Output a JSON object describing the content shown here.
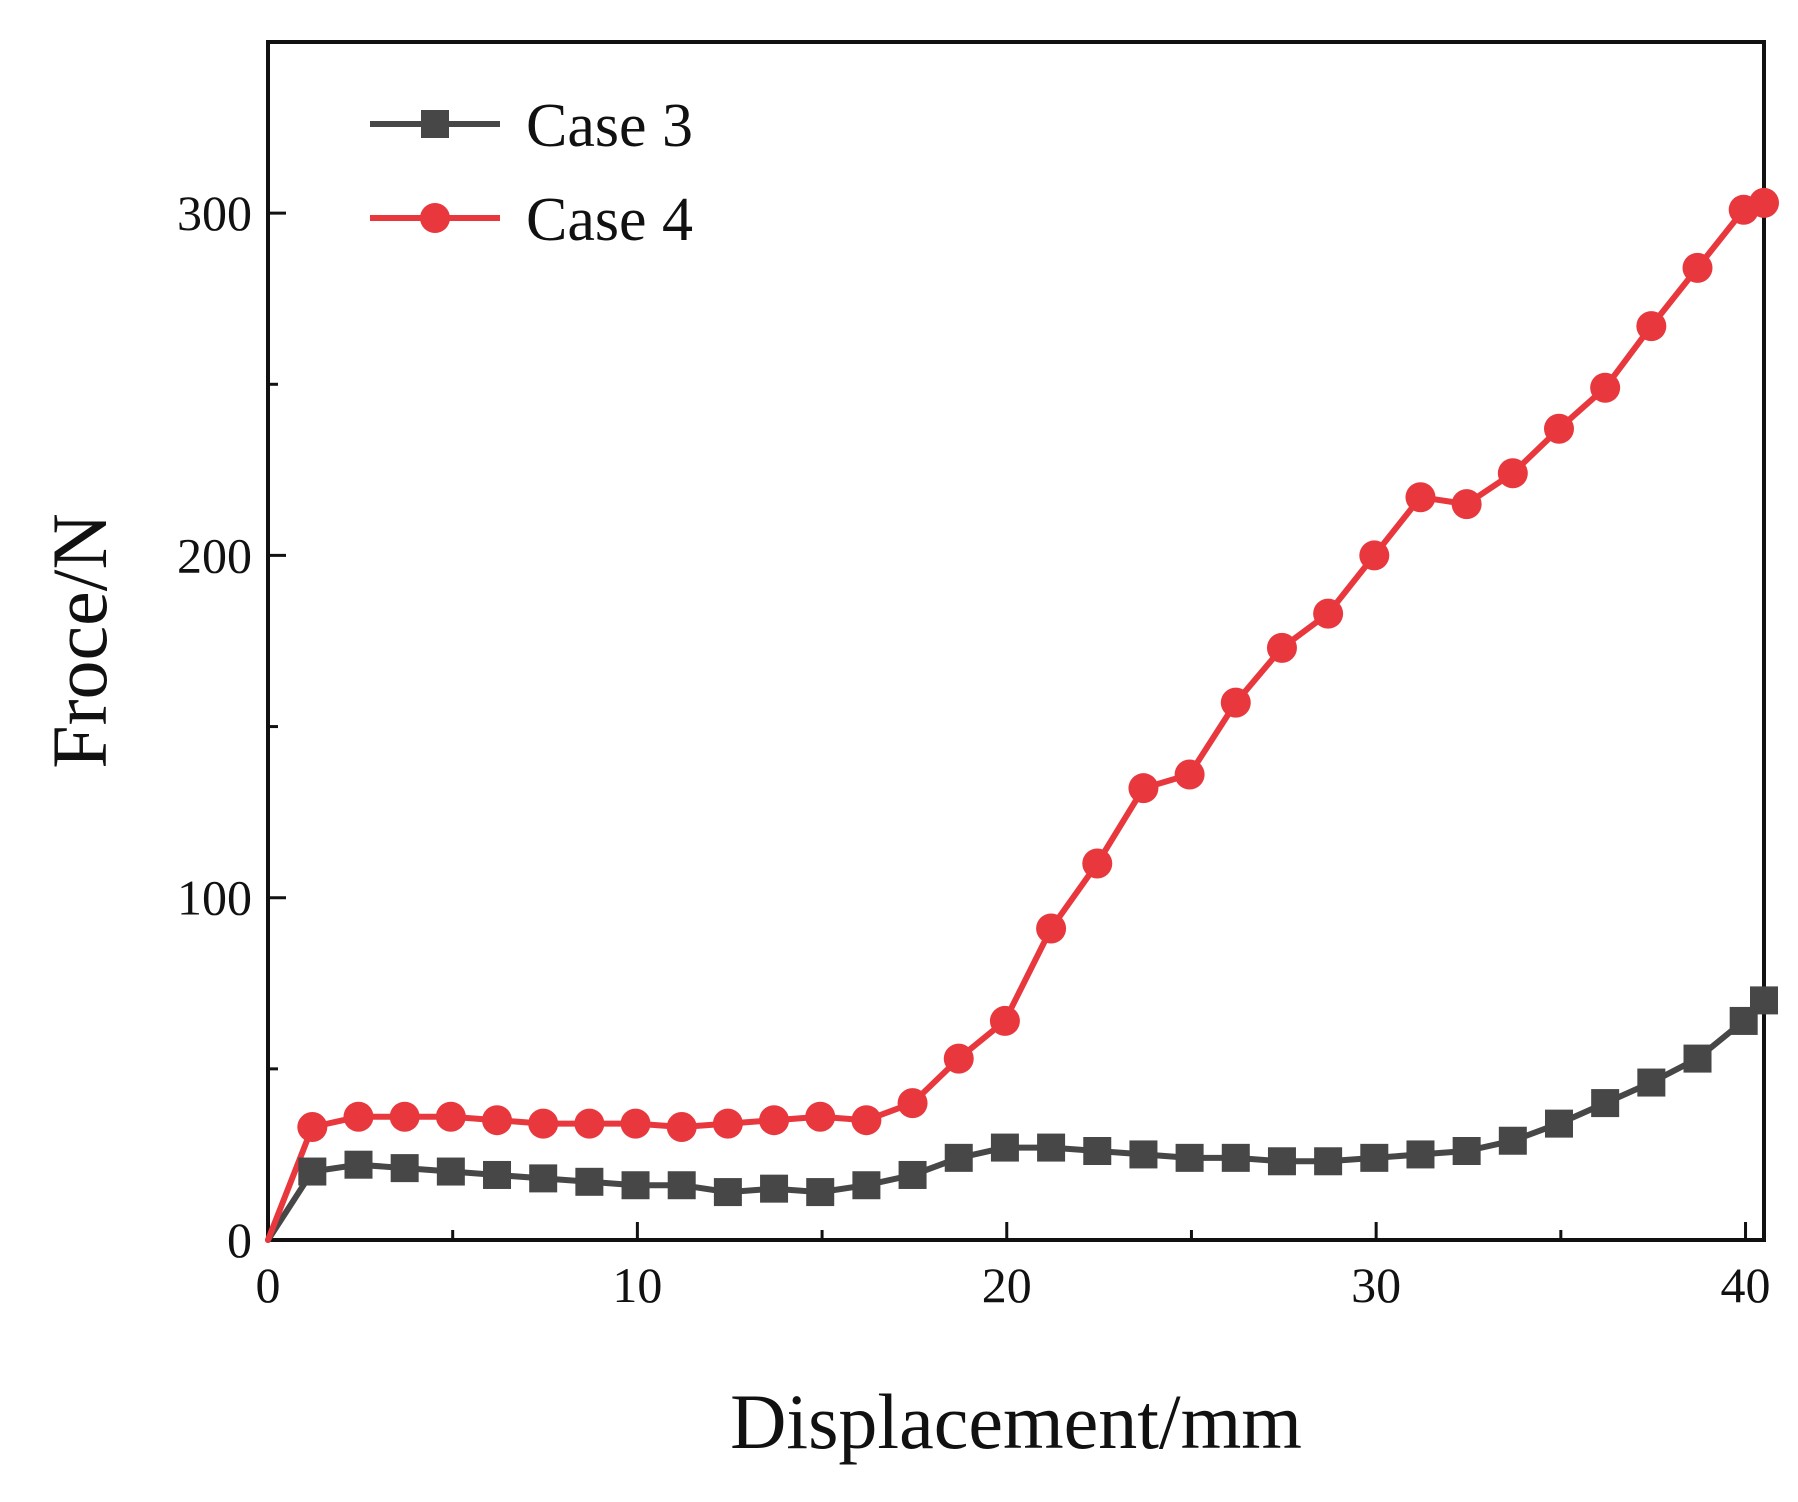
{
  "chart_data": {
    "type": "line",
    "title": "",
    "xlabel": "Displacement/mm",
    "ylabel": "Froce/N",
    "xlim": [
      0,
      40.5
    ],
    "ylim": [
      0,
      350
    ],
    "xticks": [
      0,
      10,
      20,
      30,
      40
    ],
    "xtick_labels": [
      "0",
      "10",
      "20",
      "30",
      "40"
    ],
    "yticks": [
      0,
      100,
      200,
      300
    ],
    "ytick_labels": [
      "0",
      "100",
      "200",
      "300"
    ],
    "grid": false,
    "legend_position": "top-left",
    "series": [
      {
        "name": "Case 3",
        "color": "#474747",
        "marker": "square",
        "x": [
          0,
          1.2,
          2.45,
          3.7,
          4.95,
          6.2,
          7.45,
          8.7,
          9.95,
          11.2,
          12.45,
          13.7,
          14.95,
          16.2,
          17.45,
          18.7,
          19.95,
          21.2,
          22.45,
          23.7,
          24.95,
          26.2,
          27.45,
          28.7,
          29.95,
          31.2,
          32.45,
          33.7,
          34.95,
          36.2,
          37.45,
          38.7,
          39.95,
          40.5
        ],
        "y": [
          0,
          20,
          22,
          21,
          20,
          19,
          18,
          17,
          16,
          16,
          14,
          15,
          14,
          16,
          19,
          24,
          27,
          27,
          26,
          25,
          24,
          24,
          23,
          23,
          24,
          25,
          26,
          29,
          34,
          40,
          46,
          53,
          64,
          70
        ]
      },
      {
        "name": "Case 4",
        "color": "#e8383d",
        "marker": "circle",
        "x": [
          0,
          1.2,
          2.45,
          3.7,
          4.95,
          6.2,
          7.45,
          8.7,
          9.95,
          11.2,
          12.45,
          13.7,
          14.95,
          16.2,
          17.45,
          18.7,
          19.95,
          21.2,
          22.45,
          23.7,
          24.95,
          26.2,
          27.45,
          28.7,
          29.95,
          31.2,
          32.45,
          33.7,
          34.95,
          36.2,
          37.45,
          38.7,
          39.95,
          40.5
        ],
        "y": [
          0,
          33,
          36,
          36,
          36,
          35,
          34,
          34,
          34,
          33,
          34,
          35,
          36,
          35,
          40,
          53,
          64,
          91,
          110,
          132,
          136,
          157,
          173,
          183,
          200,
          217,
          215,
          224,
          237,
          249,
          267,
          284,
          301,
          303
        ]
      }
    ]
  }
}
